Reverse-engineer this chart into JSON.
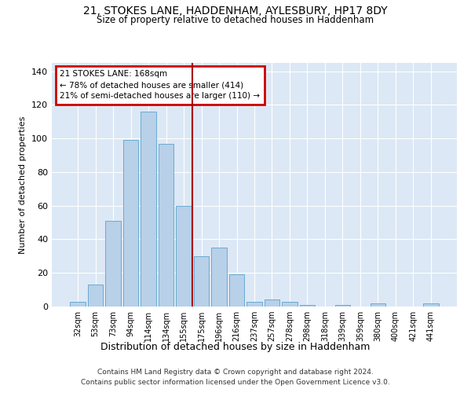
{
  "title_line1": "21, STOKES LANE, HADDENHAM, AYLESBURY, HP17 8DY",
  "title_line2": "Size of property relative to detached houses in Haddenham",
  "xlabel": "Distribution of detached houses by size in Haddenham",
  "ylabel": "Number of detached properties",
  "categories": [
    "32sqm",
    "53sqm",
    "73sqm",
    "94sqm",
    "114sqm",
    "134sqm",
    "155sqm",
    "175sqm",
    "196sqm",
    "216sqm",
    "237sqm",
    "257sqm",
    "278sqm",
    "298sqm",
    "318sqm",
    "339sqm",
    "359sqm",
    "380sqm",
    "400sqm",
    "421sqm",
    "441sqm"
  ],
  "values": [
    3,
    13,
    51,
    99,
    116,
    97,
    60,
    30,
    35,
    19,
    3,
    4,
    3,
    1,
    0,
    1,
    0,
    2,
    0,
    0,
    2
  ],
  "bar_color": "#b8d0e8",
  "bar_edge_color": "#6aabd2",
  "background_color": "#dce8f5",
  "grid_color": "#ffffff",
  "vline_color": "#aa0000",
  "annotation_text": "21 STOKES LANE: 168sqm\n← 78% of detached houses are smaller (414)\n21% of semi-detached houses are larger (110) →",
  "annotation_box_color": "#cc0000",
  "ylim": [
    0,
    145
  ],
  "yticks": [
    0,
    20,
    40,
    60,
    80,
    100,
    120,
    140
  ],
  "footnote_line1": "Contains HM Land Registry data © Crown copyright and database right 2024.",
  "footnote_line2": "Contains public sector information licensed under the Open Government Licence v3.0."
}
